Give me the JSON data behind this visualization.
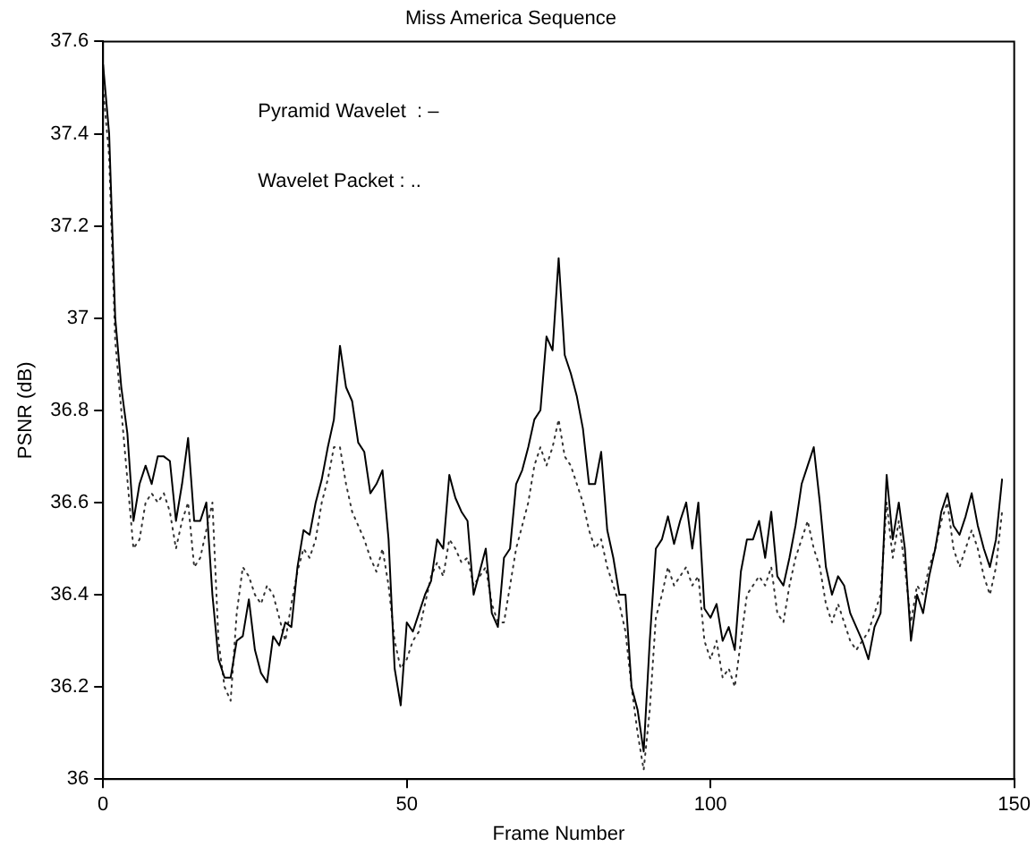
{
  "chart_data": {
    "type": "line",
    "title": "Miss America Sequence",
    "xlabel": "Frame Number",
    "ylabel": "PSNR (dB)",
    "annotations": [
      "Pyramid Wavelet  : –",
      "Wavelet Packet : .."
    ],
    "x": [
      0,
      1,
      2,
      3,
      4,
      5,
      6,
      7,
      8,
      9,
      10,
      11,
      12,
      13,
      14,
      15,
      16,
      17,
      18,
      19,
      20,
      21,
      22,
      23,
      24,
      25,
      26,
      27,
      28,
      29,
      30,
      31,
      32,
      33,
      34,
      35,
      36,
      37,
      38,
      39,
      40,
      41,
      42,
      43,
      44,
      45,
      46,
      47,
      48,
      49,
      50,
      51,
      52,
      53,
      54,
      55,
      56,
      57,
      58,
      59,
      60,
      61,
      62,
      63,
      64,
      65,
      66,
      67,
      68,
      69,
      70,
      71,
      72,
      73,
      74,
      75,
      76,
      77,
      78,
      79,
      80,
      81,
      82,
      83,
      84,
      85,
      86,
      87,
      88,
      89,
      90,
      91,
      92,
      93,
      94,
      95,
      96,
      97,
      98,
      99,
      100,
      101,
      102,
      103,
      104,
      105,
      106,
      107,
      108,
      109,
      110,
      111,
      112,
      113,
      114,
      115,
      116,
      117,
      118,
      119,
      120,
      121,
      122,
      123,
      124,
      125,
      126,
      127,
      128,
      129,
      130,
      131,
      132,
      133,
      134,
      135,
      136,
      137,
      138,
      139,
      140,
      141,
      142,
      143,
      144,
      145,
      146,
      147,
      148
    ],
    "series": [
      {
        "color": "#000000",
        "line_style": "solid",
        "values": [
          37.55,
          37.4,
          37.0,
          36.85,
          36.75,
          36.56,
          36.64,
          36.68,
          36.64,
          36.7,
          36.7,
          36.69,
          36.56,
          36.64,
          36.74,
          36.56,
          36.56,
          36.6,
          36.4,
          36.26,
          36.22,
          36.22,
          36.3,
          36.31,
          36.39,
          36.28,
          36.23,
          36.21,
          36.31,
          36.29,
          36.34,
          36.33,
          36.46,
          36.54,
          36.53,
          36.6,
          36.65,
          36.72,
          36.78,
          36.94,
          36.85,
          36.82,
          36.73,
          36.71,
          36.62,
          36.64,
          36.67,
          36.52,
          36.24,
          36.16,
          36.34,
          36.32,
          36.36,
          36.4,
          36.43,
          36.52,
          36.5,
          36.66,
          36.61,
          36.58,
          36.56,
          36.4,
          36.45,
          36.5,
          36.36,
          36.33,
          36.48,
          36.5,
          36.64,
          36.67,
          36.72,
          36.78,
          36.8,
          36.96,
          36.93,
          37.13,
          36.92,
          36.88,
          36.83,
          36.76,
          36.64,
          36.64,
          36.71,
          36.54,
          36.48,
          36.4,
          36.4,
          36.2,
          36.15,
          36.06,
          36.3,
          36.5,
          36.52,
          36.57,
          36.51,
          36.56,
          36.6,
          36.5,
          36.6,
          36.37,
          36.35,
          36.38,
          36.3,
          36.33,
          36.28,
          36.45,
          36.52,
          36.52,
          36.56,
          36.48,
          36.58,
          36.44,
          36.42,
          36.48,
          36.55,
          36.64,
          36.68,
          36.72,
          36.6,
          36.46,
          36.4,
          36.44,
          36.42,
          36.36,
          36.33,
          36.3,
          36.26,
          36.33,
          36.36,
          36.66,
          36.52,
          36.6,
          36.5,
          36.3,
          36.4,
          36.36,
          36.44,
          36.5,
          36.58,
          36.62,
          36.55,
          36.53,
          36.57,
          36.62,
          36.55,
          36.5,
          36.46,
          36.52,
          36.65
        ]
      },
      {
        "color": "#333333",
        "line_style": "dotted",
        "values": [
          37.5,
          37.35,
          36.95,
          36.8,
          36.65,
          36.5,
          36.52,
          36.6,
          36.62,
          36.6,
          36.62,
          36.58,
          36.5,
          36.56,
          36.6,
          36.46,
          36.48,
          36.54,
          36.6,
          36.3,
          36.2,
          36.17,
          36.36,
          36.46,
          36.44,
          36.4,
          36.38,
          36.42,
          36.4,
          36.35,
          36.3,
          36.38,
          36.45,
          36.5,
          36.48,
          36.52,
          36.6,
          36.65,
          36.72,
          36.72,
          36.64,
          36.58,
          36.55,
          36.52,
          36.48,
          36.45,
          36.5,
          36.42,
          36.3,
          36.24,
          36.26,
          36.3,
          36.32,
          36.38,
          36.44,
          36.47,
          36.44,
          36.52,
          36.5,
          36.47,
          36.48,
          36.42,
          36.44,
          36.46,
          36.38,
          36.34,
          36.34,
          36.42,
          36.5,
          36.55,
          36.6,
          36.68,
          36.72,
          36.68,
          36.72,
          36.78,
          36.7,
          36.68,
          36.64,
          36.6,
          36.54,
          36.5,
          36.52,
          36.46,
          36.42,
          36.38,
          36.32,
          36.2,
          36.1,
          36.02,
          36.15,
          36.35,
          36.4,
          36.46,
          36.42,
          36.44,
          36.46,
          36.42,
          36.44,
          36.3,
          36.26,
          36.3,
          36.22,
          36.24,
          36.2,
          36.3,
          36.4,
          36.42,
          36.44,
          36.42,
          36.46,
          36.36,
          36.34,
          36.42,
          36.48,
          36.52,
          36.56,
          36.5,
          36.46,
          36.38,
          36.34,
          36.38,
          36.34,
          36.3,
          36.28,
          36.3,
          36.32,
          36.36,
          36.4,
          36.6,
          36.48,
          36.56,
          36.46,
          36.34,
          36.42,
          36.4,
          36.46,
          36.5,
          36.56,
          36.6,
          36.5,
          36.46,
          36.5,
          36.54,
          36.5,
          36.44,
          36.4,
          36.46,
          36.58
        ]
      }
    ],
    "xlim": [
      0,
      150
    ],
    "xticks": [
      0,
      50,
      100,
      150
    ],
    "ylim": [
      36,
      37.6
    ],
    "yticks": [
      36,
      36.2,
      36.4,
      36.6,
      36.8,
      37,
      37.2,
      37.4,
      37.6
    ],
    "grid": false,
    "legend": false,
    "marker": "none"
  }
}
